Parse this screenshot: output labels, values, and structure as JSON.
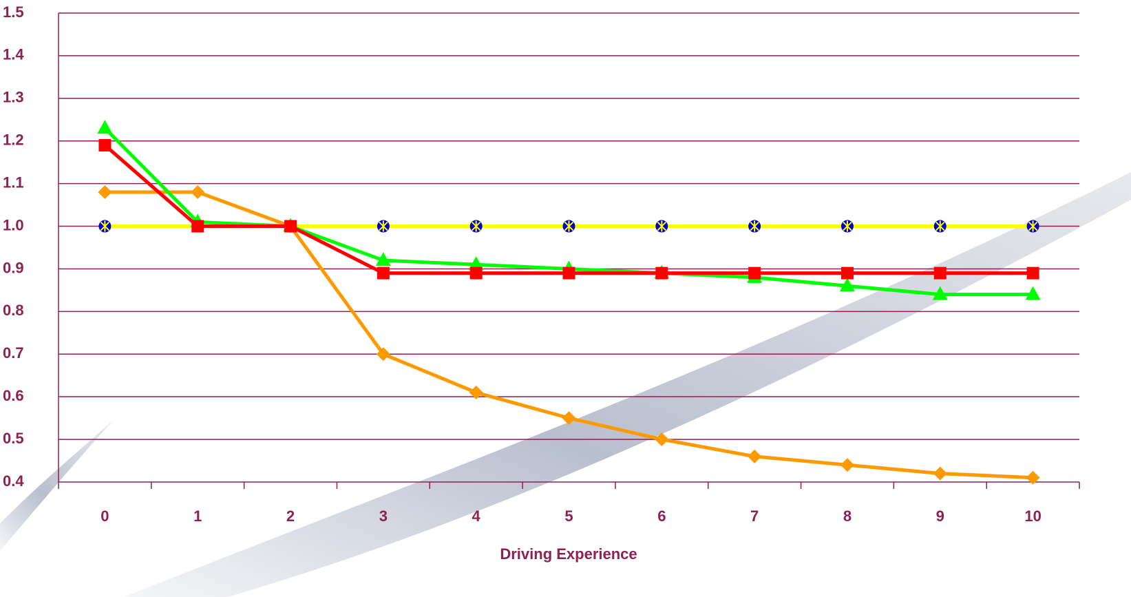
{
  "chart_data": {
    "type": "line",
    "x_label": "Driving Experience",
    "categories": [
      "0",
      "1",
      "2",
      "3",
      "4",
      "5",
      "6",
      "7",
      "8",
      "9",
      "10"
    ],
    "series": [
      {
        "color": "#ffff00",
        "marker": "circle-star",
        "marker_color": "#0000cc",
        "values": [
          1.0,
          1.0,
          1.0,
          1.0,
          1.0,
          1.0,
          1.0,
          1.0,
          1.0,
          1.0,
          1.0
        ]
      },
      {
        "color": "#ff9900",
        "marker": "diamond",
        "values": [
          1.08,
          1.08,
          1.0,
          0.7,
          0.61,
          0.55,
          0.5,
          0.46,
          0.44,
          0.42,
          0.41
        ]
      },
      {
        "color": "#00ff00",
        "marker": "triangle",
        "values": [
          1.23,
          1.01,
          1.0,
          0.92,
          0.91,
          0.9,
          0.89,
          0.88,
          0.86,
          0.84,
          0.84
        ]
      },
      {
        "color": "#ff0000",
        "marker": "square",
        "values": [
          1.19,
          1.0,
          1.0,
          0.89,
          0.89,
          0.89,
          0.89,
          0.89,
          0.89,
          0.89,
          0.89
        ]
      }
    ],
    "ylim": [
      0.4,
      1.5
    ],
    "yticks": [
      0.4,
      0.5,
      0.6,
      0.7,
      0.8,
      0.9,
      {
        "value": 1,
        "label": "1.0"
      },
      1.1,
      1.2,
      1.3,
      1.4,
      1.5
    ],
    "grid": true,
    "grid_color": "#8b2252",
    "text_color": "#8b2252"
  }
}
